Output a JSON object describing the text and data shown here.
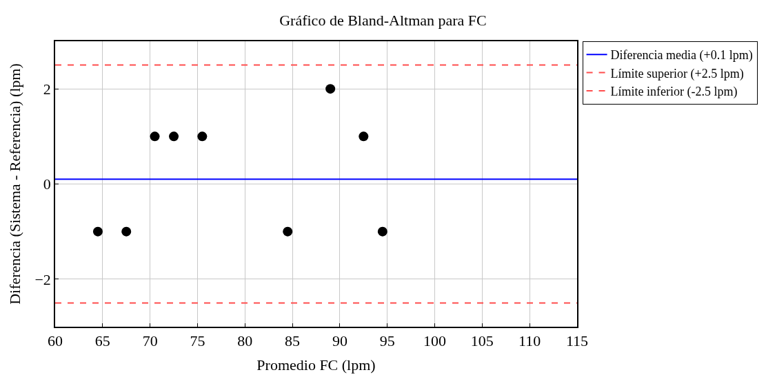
{
  "chart_data": {
    "type": "scatter",
    "title": "Gráfico de Bland-Altman para FC",
    "xlabel": "Promedio FC (lpm)",
    "ylabel": "Diferencia (Sistema - Referencia) (lpm)",
    "x": [
      64.5,
      67.5,
      70.5,
      72.5,
      75.5,
      84.5,
      89,
      92.5,
      94.5
    ],
    "series": [
      {
        "color": "#000000",
        "values": [
          -1,
          -1,
          1,
          1,
          1,
          -1,
          2,
          1,
          -1
        ]
      }
    ],
    "marker": "circle",
    "ref_lines": [
      {
        "axis": "y",
        "value": 0.1,
        "label": "Diferencia media (+0.1 lpm)",
        "color": "#0000ff",
        "line_style": "solid"
      },
      {
        "axis": "y",
        "value": 2.5,
        "label": "Límite superior (+2.5 lpm)",
        "color": "#ff4d4d",
        "line_style": "dashed"
      },
      {
        "axis": "y",
        "value": -2.5,
        "label": "Límite inferior (-2.5 lpm)",
        "color": "#ff4d4d",
        "line_style": "dashed"
      }
    ],
    "xlim": [
      60,
      115
    ],
    "xticks": [
      60,
      65,
      70,
      75,
      80,
      85,
      90,
      95,
      100,
      105,
      110,
      115
    ],
    "ylim": [
      -3,
      3
    ],
    "yticks": [
      {
        "value": -2,
        "label": "−2"
      },
      0,
      2
    ],
    "grid": true,
    "legend": "right"
  }
}
